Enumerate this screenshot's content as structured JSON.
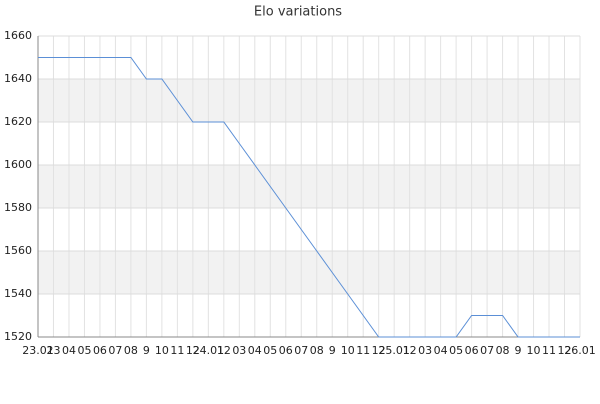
{
  "chart_data": {
    "type": "line",
    "title": "Elo variations",
    "categories": [
      "23.01",
      "23",
      "04",
      "05",
      "06",
      "07",
      "08",
      "9",
      "10",
      "11",
      "12",
      "24.01",
      "12",
      "03",
      "04",
      "05",
      "06",
      "07",
      "08",
      "9",
      "10",
      "11",
      "12",
      "25.01",
      "12",
      "03",
      "04",
      "05",
      "06",
      "07",
      "08",
      "9",
      "10",
      "11",
      "12",
      "26.01"
    ],
    "series": [
      {
        "name": "Elo",
        "color": "#5b8fd6",
        "values": [
          1650,
          1650,
          1650,
          1650,
          1650,
          1650,
          1650,
          1640,
          1640,
          1630,
          1620,
          1620,
          1620,
          1610,
          1600,
          1590,
          1580,
          1570,
          1560,
          1550,
          1540,
          1530,
          1520,
          1520,
          1520,
          1520,
          1520,
          1520,
          1530,
          1530,
          1530,
          1520,
          1520,
          1520,
          1520,
          1520
        ]
      }
    ],
    "ylim": [
      1520,
      1660
    ],
    "yticks": [
      1520,
      1540,
      1560,
      1580,
      1600,
      1620,
      1640,
      1660
    ],
    "grid": true
  }
}
